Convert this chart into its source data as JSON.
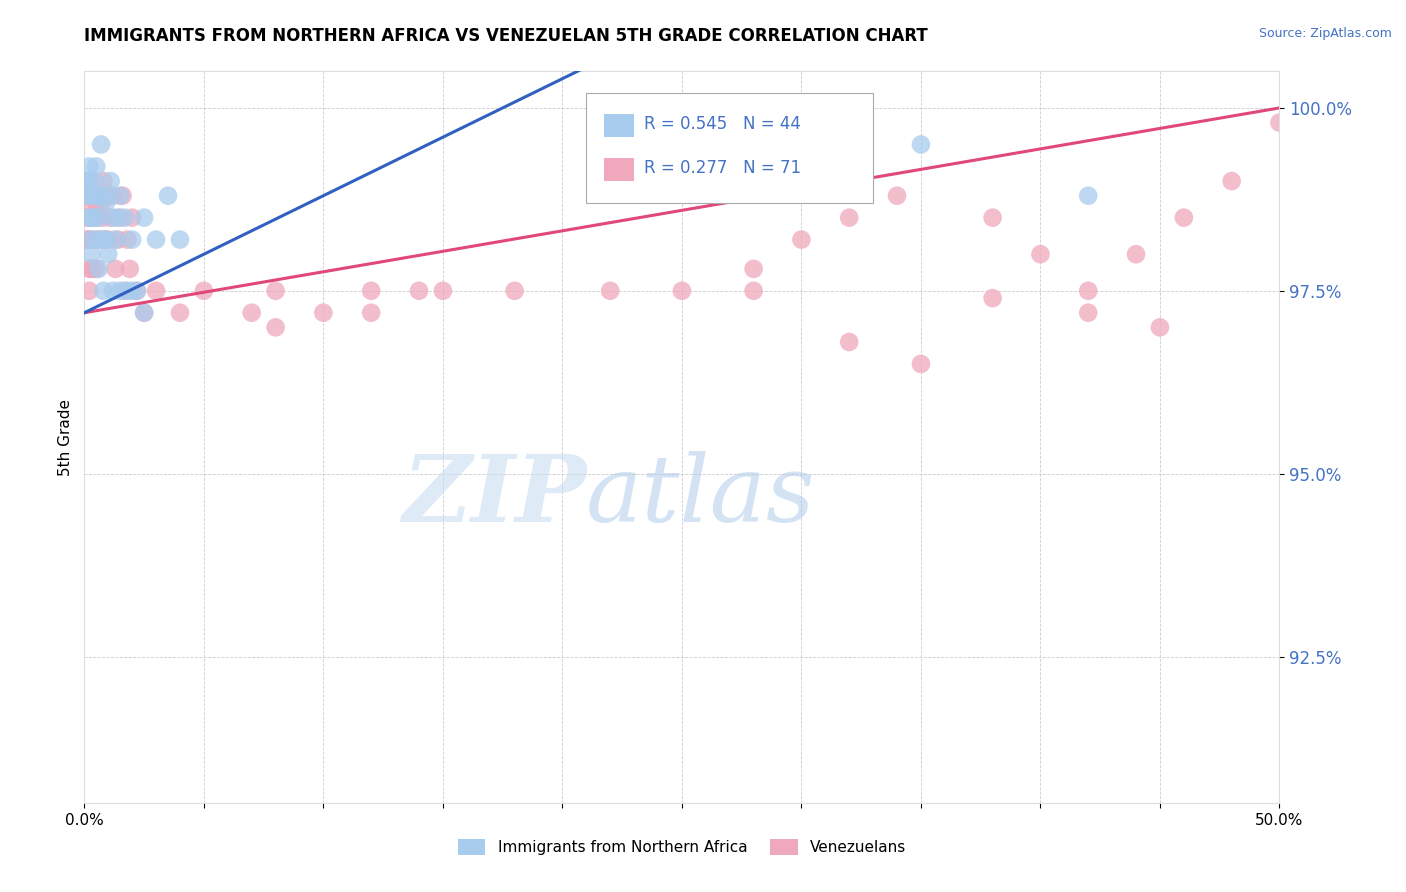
{
  "title": "IMMIGRANTS FROM NORTHERN AFRICA VS VENEZUELAN 5TH GRADE CORRELATION CHART",
  "source": "Source: ZipAtlas.com",
  "ylabel": "5th Grade",
  "xlim": [
    0.0,
    0.5
  ],
  "ylim": [
    0.905,
    1.005
  ],
  "xticks": [
    0.0,
    0.05,
    0.1,
    0.15,
    0.2,
    0.25,
    0.3,
    0.35,
    0.4,
    0.45,
    0.5
  ],
  "xticklabels": [
    "0.0%",
    "",
    "",
    "",
    "",
    "",
    "",
    "",
    "",
    "",
    "50.0%"
  ],
  "yticks": [
    0.925,
    0.95,
    0.975,
    1.0
  ],
  "yticklabels": [
    "92.5%",
    "95.0%",
    "97.5%",
    "100.0%"
  ],
  "blue_color": "#A8CCEE",
  "pink_color": "#F0A8BC",
  "trend_blue": "#3060C0",
  "trend_pink": "#E04878",
  "legend_label_blue": "Immigrants from Northern Africa",
  "legend_label_pink": "Venezuelans",
  "legend_R_blue": "R = 0.545",
  "legend_N_blue": "N = 44",
  "legend_R_pink": "R = 0.277",
  "legend_N_pink": "N = 71",
  "watermark_ZIP": "ZIP",
  "watermark_atlas": "atlas",
  "blue_x": [
    0.001,
    0.001,
    0.002,
    0.002,
    0.002,
    0.003,
    0.003,
    0.003,
    0.003,
    0.004,
    0.004,
    0.005,
    0.005,
    0.005,
    0.006,
    0.006,
    0.007,
    0.007,
    0.008,
    0.009,
    0.009,
    0.01,
    0.011,
    0.012,
    0.013,
    0.014,
    0.015,
    0.017,
    0.018,
    0.02,
    0.022,
    0.025,
    0.03,
    0.035,
    0.04,
    0.006,
    0.008,
    0.01,
    0.012,
    0.015,
    0.02,
    0.025,
    0.35,
    0.42
  ],
  "blue_y": [
    0.99,
    0.988,
    0.992,
    0.99,
    0.985,
    0.988,
    0.985,
    0.982,
    0.98,
    0.99,
    0.985,
    0.992,
    0.988,
    0.982,
    0.988,
    0.985,
    0.995,
    0.988,
    0.982,
    0.987,
    0.982,
    0.988,
    0.99,
    0.985,
    0.982,
    0.985,
    0.988,
    0.985,
    0.975,
    0.982,
    0.975,
    0.985,
    0.982,
    0.988,
    0.982,
    0.978,
    0.975,
    0.98,
    0.975,
    0.975,
    0.975,
    0.972,
    0.995,
    0.988
  ],
  "pink_x": [
    0.001,
    0.001,
    0.001,
    0.001,
    0.002,
    0.002,
    0.002,
    0.002,
    0.002,
    0.003,
    0.003,
    0.003,
    0.003,
    0.004,
    0.004,
    0.004,
    0.005,
    0.005,
    0.005,
    0.006,
    0.006,
    0.007,
    0.007,
    0.008,
    0.008,
    0.009,
    0.01,
    0.01,
    0.011,
    0.012,
    0.013,
    0.014,
    0.015,
    0.016,
    0.017,
    0.018,
    0.019,
    0.02,
    0.022,
    0.025,
    0.03,
    0.04,
    0.05,
    0.07,
    0.08,
    0.1,
    0.12,
    0.14,
    0.18,
    0.22,
    0.25,
    0.28,
    0.3,
    0.32,
    0.34,
    0.38,
    0.4,
    0.42,
    0.44,
    0.46,
    0.48,
    0.5,
    0.38,
    0.42,
    0.45,
    0.32,
    0.28,
    0.35,
    0.08,
    0.12,
    0.15
  ],
  "pink_y": [
    0.988,
    0.99,
    0.985,
    0.982,
    0.988,
    0.985,
    0.982,
    0.978,
    0.975,
    0.987,
    0.985,
    0.982,
    0.978,
    0.988,
    0.985,
    0.978,
    0.987,
    0.985,
    0.978,
    0.988,
    0.982,
    0.987,
    0.982,
    0.99,
    0.985,
    0.982,
    0.988,
    0.982,
    0.985,
    0.988,
    0.978,
    0.982,
    0.985,
    0.988,
    0.975,
    0.982,
    0.978,
    0.985,
    0.975,
    0.972,
    0.975,
    0.972,
    0.975,
    0.972,
    0.975,
    0.972,
    0.975,
    0.975,
    0.975,
    0.975,
    0.975,
    0.978,
    0.982,
    0.985,
    0.988,
    0.985,
    0.98,
    0.975,
    0.98,
    0.985,
    0.99,
    0.998,
    0.974,
    0.972,
    0.97,
    0.968,
    0.975,
    0.965,
    0.97,
    0.972,
    0.975
  ]
}
